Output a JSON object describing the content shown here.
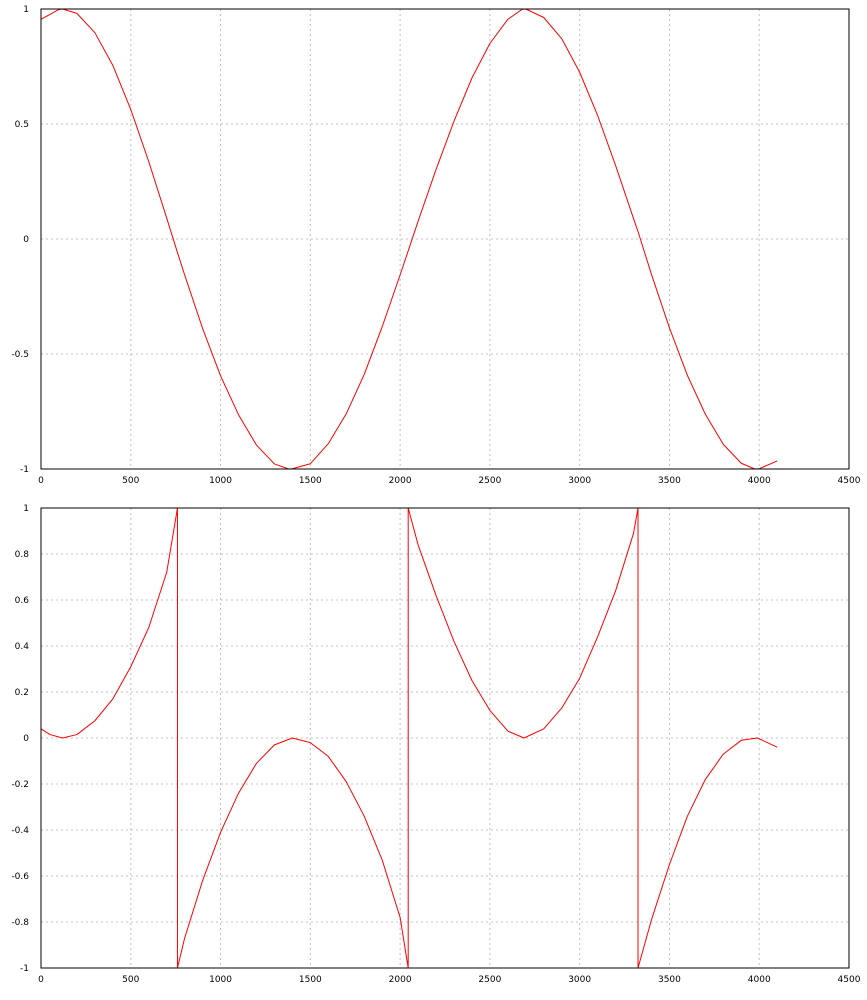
{
  "chart_data": [
    {
      "type": "line",
      "title": "",
      "xlabel": "",
      "ylabel": "",
      "xlim": [
        0,
        4500
      ],
      "ylim": [
        -1,
        1
      ],
      "grid": true,
      "x_ticks": [
        "0",
        "500",
        "1000",
        "1500",
        "2000",
        "2500",
        "3000",
        "3500",
        "4000",
        "4500"
      ],
      "y_ticks": [
        "1",
        "0.5",
        "0",
        "-0.5",
        "-1"
      ],
      "series": [
        {
          "color": "#ff0000",
          "x": [
            0,
            100,
            120,
            200,
            300,
            400,
            500,
            600,
            700,
            760,
            800,
            900,
            1000,
            1100,
            1200,
            1300,
            1380,
            1400,
            1500,
            1600,
            1700,
            1800,
            1900,
            2000,
            2050,
            2100,
            2200,
            2300,
            2400,
            2500,
            2600,
            2680,
            2700,
            2800,
            2900,
            3000,
            3100,
            3200,
            3300,
            3330,
            3400,
            3500,
            3600,
            3700,
            3800,
            3900,
            3975,
            4000,
            4100
          ],
          "y": [
            0.955,
            0.998,
            1.0,
            0.981,
            0.897,
            0.755,
            0.563,
            0.337,
            0.091,
            -0.059,
            -0.156,
            -0.389,
            -0.595,
            -0.764,
            -0.896,
            -0.978,
            -1.0,
            -0.999,
            -0.977,
            -0.89,
            -0.76,
            -0.589,
            -0.382,
            -0.156,
            -0.04,
            0.077,
            0.302,
            0.512,
            0.7,
            0.85,
            0.955,
            0.999,
            1.0,
            0.963,
            0.871,
            0.725,
            0.537,
            0.32,
            0.089,
            0.02,
            -0.154,
            -0.386,
            -0.593,
            -0.762,
            -0.893,
            -0.975,
            -1.0,
            -0.999,
            -0.965
          ]
        }
      ]
    },
    {
      "type": "line",
      "title": "",
      "xlabel": "",
      "ylabel": "",
      "xlim": [
        0,
        4500
      ],
      "ylim": [
        -1,
        1
      ],
      "grid": true,
      "x_ticks": [
        "0",
        "500",
        "1000",
        "1500",
        "2000",
        "2500",
        "3000",
        "3500",
        "4000",
        "4500"
      ],
      "y_ticks": [
        "1",
        "0.8",
        "0.6",
        "0.4",
        "0.2",
        "0",
        "-0.2",
        "-0.4",
        "-0.6",
        "-0.8",
        "-1"
      ],
      "series": [
        {
          "color": "#ff0000",
          "x": [
            0,
            50,
            120,
            200,
            300,
            400,
            500,
            600,
            700,
            760,
            760,
            800,
            900,
            1000,
            1100,
            1200,
            1300,
            1400,
            1500,
            1600,
            1700,
            1800,
            1900,
            2000,
            2045,
            2045,
            2100,
            2200,
            2300,
            2400,
            2500,
            2600,
            2690,
            2800,
            2900,
            3000,
            3100,
            3200,
            3300,
            3325,
            3325,
            3400,
            3500,
            3600,
            3700,
            3800,
            3900,
            3990,
            4100
          ],
          "y": [
            0.04,
            0.015,
            0.0,
            0.015,
            0.075,
            0.17,
            0.31,
            0.48,
            0.72,
            1.0,
            -1.0,
            -0.87,
            -0.62,
            -0.41,
            -0.24,
            -0.11,
            -0.03,
            0.0,
            -0.02,
            -0.08,
            -0.19,
            -0.34,
            -0.53,
            -0.78,
            -1.0,
            1.0,
            0.84,
            0.62,
            0.42,
            0.25,
            0.12,
            0.03,
            0.0,
            0.04,
            0.13,
            0.26,
            0.44,
            0.64,
            0.89,
            1.0,
            -1.0,
            -0.79,
            -0.55,
            -0.34,
            -0.18,
            -0.07,
            -0.01,
            0.0,
            -0.04
          ]
        }
      ]
    }
  ]
}
